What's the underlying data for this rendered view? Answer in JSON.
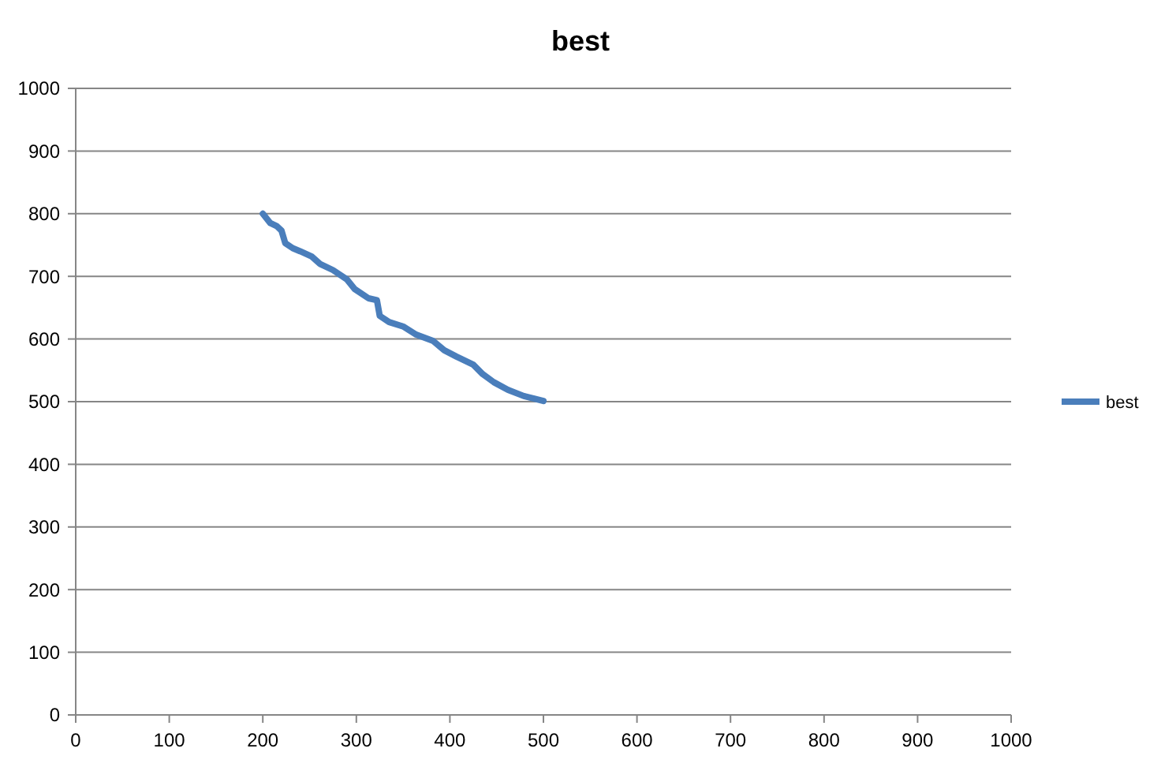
{
  "chart_data": {
    "type": "line",
    "title": "best",
    "grid": "y",
    "legend": "right",
    "marker": "none",
    "line_style": "solid",
    "xlim": [
      0,
      1000
    ],
    "xticks": [
      0,
      100,
      200,
      300,
      400,
      500,
      600,
      700,
      800,
      900,
      1000
    ],
    "ylim": [
      0,
      1000
    ],
    "yticks": [
      0,
      100,
      200,
      300,
      400,
      500,
      600,
      700,
      800,
      900,
      1000
    ],
    "series": [
      {
        "name": "best",
        "color": "#4a7ebb",
        "x": [
          200,
          208,
          215,
          220,
          224,
          232,
          240,
          252,
          261,
          275,
          290,
          298,
          313,
          322,
          325,
          335,
          350,
          364,
          382,
          394,
          407,
          425,
          435,
          447,
          462,
          479,
          490,
          500
        ],
        "values": [
          800,
          785,
          780,
          773,
          753,
          745,
          740,
          732,
          720,
          710,
          695,
          680,
          665,
          662,
          637,
          627,
          620,
          607,
          597,
          582,
          572,
          559,
          544,
          531,
          519,
          509,
          505,
          501
        ]
      }
    ]
  }
}
